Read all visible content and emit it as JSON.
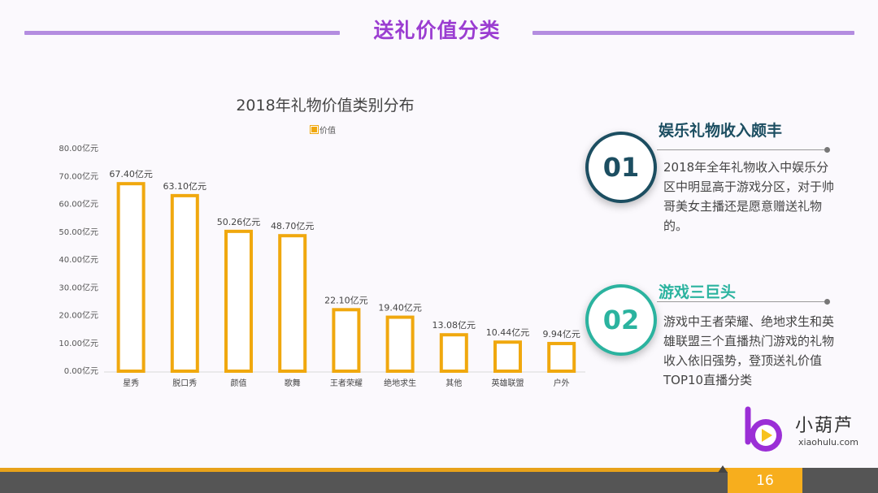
{
  "header": {
    "title": "送礼价值分类"
  },
  "chart_data": {
    "type": "bar",
    "title": "2018年礼物价值类别分布",
    "legend": "价值",
    "categories": [
      "星秀",
      "脱口秀",
      "颜值",
      "歌舞",
      "王者荣耀",
      "绝地求生",
      "其他",
      "英雄联盟",
      "户外"
    ],
    "values": [
      67.4,
      63.1,
      50.26,
      48.7,
      22.1,
      19.4,
      13.08,
      10.44,
      9.94
    ],
    "data_labels": [
      "67.40亿元",
      "63.10亿元",
      "50.26亿元",
      "48.70亿元",
      "22.10亿元",
      "19.40亿元",
      "13.08亿元",
      "10.44亿元",
      "9.94亿元"
    ],
    "yticks": [
      "0.00亿元",
      "10.00亿元",
      "20.00亿元",
      "30.00亿元",
      "40.00亿元",
      "50.00亿元",
      "60.00亿元",
      "70.00亿元",
      "80.00亿元"
    ],
    "ylim": [
      0,
      80
    ],
    "xlabel": "",
    "ylabel": "",
    "colors": {
      "bar_border": "#f0a80e",
      "bar_fill": "#ffffff"
    }
  },
  "insights": [
    {
      "number": "01",
      "title": "娱乐礼物收入颇丰",
      "text": "2018年全年礼物收入中娱乐分区中明显高于游戏分区，对于帅哥美女主播还是愿意赠送礼物的。"
    },
    {
      "number": "02",
      "title": "游戏三巨头",
      "text": "游戏中王者荣耀、绝地求生和英雄联盟三个直播热门游戏的礼物收入依旧强势，登顶送礼价值TOP10直播分类"
    }
  ],
  "brand": {
    "name": "小葫芦",
    "url": "xiaohulu.com",
    "icon": "xiaohulu-logo-icon",
    "color": "#9b2fd6"
  },
  "footer": {
    "page_number": "16"
  }
}
